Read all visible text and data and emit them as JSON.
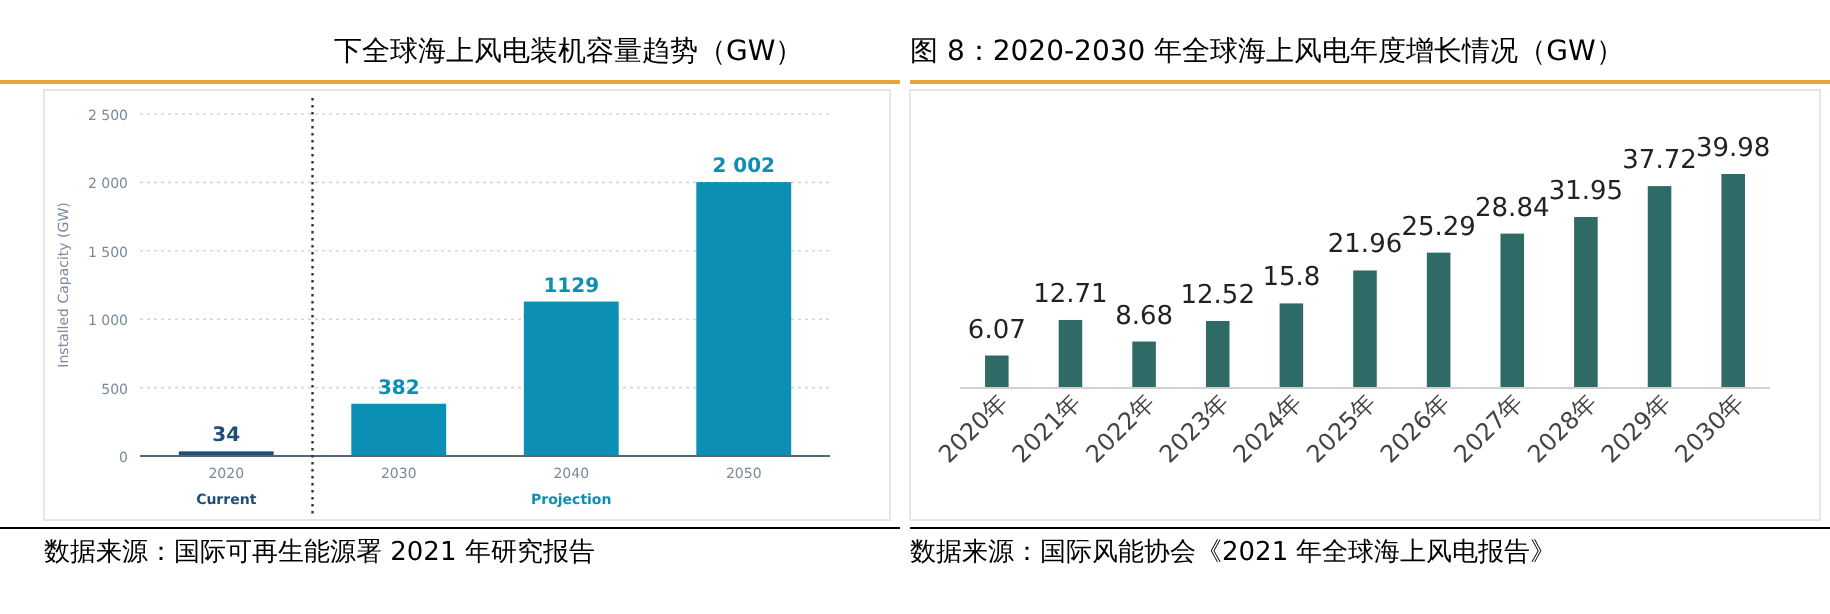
{
  "chart_data": [
    {
      "type": "bar",
      "title": "下全球海上风电装机容量趋势（GW）",
      "ylabel": "Installed Capacity (GW)",
      "categories": [
        "2020",
        "2030",
        "2040",
        "2050"
      ],
      "values": [
        34,
        382,
        1129,
        2002
      ],
      "colors": [
        "#1f4e79",
        "#0b8fb4",
        "#0b8fb4",
        "#0b8fb4"
      ],
      "value_labels": [
        "34",
        "382",
        "1129",
        "2 002"
      ],
      "ylim": [
        0,
        2500
      ],
      "yticks": [
        0,
        500,
        {
          "value": 1000,
          "label": "1 000"
        },
        {
          "value": 1500,
          "label": "1 500"
        },
        {
          "value": 2000,
          "label": "2 000"
        },
        {
          "value": 2500,
          "label": "2 500"
        }
      ],
      "grid": "y",
      "annotations": [
        "Current",
        "Projection",
        "数据来源：国际可再生能源署 2021 年研究报告"
      ]
    },
    {
      "type": "bar",
      "title": "图 8：2020-2030 年全球海上风电年度增长情况（GW）",
      "categories": [
        "2020年",
        "2021年",
        "2022年",
        "2023年",
        "2024年",
        "2025年",
        "2026年",
        "2027年",
        "2028年",
        "2029年",
        "2030年"
      ],
      "values": [
        6.07,
        12.71,
        8.68,
        12.52,
        15.8,
        21.96,
        25.29,
        28.84,
        31.95,
        37.72,
        39.98
      ],
      "color": "#2e6b66",
      "data_labels": true,
      "annotations": [
        "数据来源：国际风能协会《2021 年全球海上风电报告》"
      ]
    }
  ]
}
